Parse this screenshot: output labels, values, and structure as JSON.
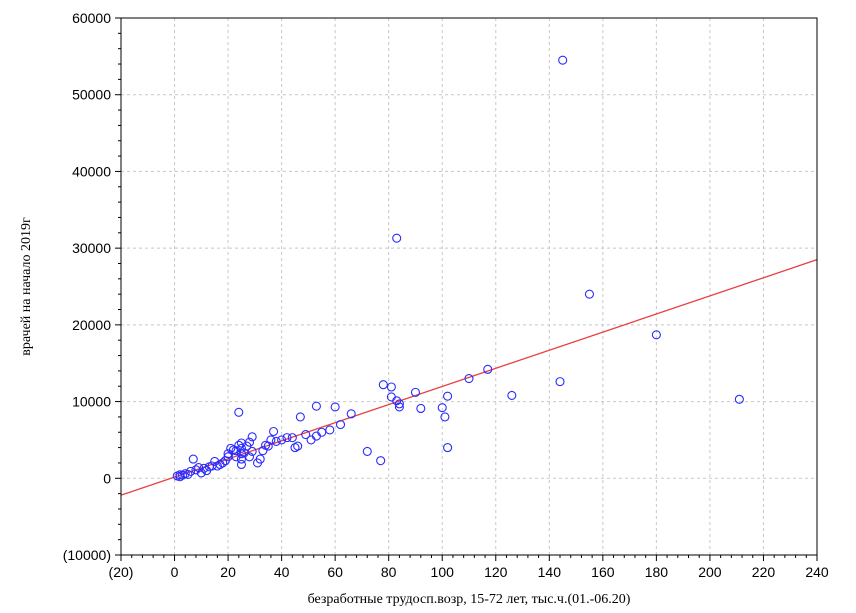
{
  "chart_data": {
    "type": "scatter",
    "xlabel": "безработные трудосп.возр, 15-72 лет, тыс.ч.(01.-06.20)",
    "ylabel": "врачей на начало 2019г",
    "xlim": [
      -20,
      240
    ],
    "ylim": [
      -10000,
      60000
    ],
    "x_ticks": [
      {
        "v": -20,
        "label": "(20)"
      },
      {
        "v": 0,
        "label": "0"
      },
      {
        "v": 20,
        "label": "20"
      },
      {
        "v": 40,
        "label": "40"
      },
      {
        "v": 60,
        "label": "60"
      },
      {
        "v": 80,
        "label": "80"
      },
      {
        "v": 100,
        "label": "100"
      },
      {
        "v": 120,
        "label": "120"
      },
      {
        "v": 140,
        "label": "140"
      },
      {
        "v": 160,
        "label": "160"
      },
      {
        "v": 180,
        "label": "180"
      },
      {
        "v": 200,
        "label": "200"
      },
      {
        "v": 220,
        "label": "220"
      },
      {
        "v": 240,
        "label": "240"
      }
    ],
    "y_ticks": [
      {
        "v": -10000,
        "label": "(10000)"
      },
      {
        "v": 0,
        "label": "0"
      },
      {
        "v": 10000,
        "label": "10000"
      },
      {
        "v": 20000,
        "label": "20000"
      },
      {
        "v": 30000,
        "label": "30000"
      },
      {
        "v": 40000,
        "label": "40000"
      },
      {
        "v": 50000,
        "label": "50000"
      },
      {
        "v": 60000,
        "label": "60000"
      }
    ],
    "grid": true,
    "trendline": {
      "x": [
        -20,
        240
      ],
      "y": [
        -2200,
        28500
      ]
    },
    "points": [
      [
        145,
        54500
      ],
      [
        83,
        31300
      ],
      [
        155,
        24000
      ],
      [
        180,
        18700
      ],
      [
        211,
        10300
      ],
      [
        144,
        12600
      ],
      [
        126,
        10800
      ],
      [
        117,
        14200
      ],
      [
        110,
        13000
      ],
      [
        90,
        11200
      ],
      [
        78,
        12200
      ],
      [
        81,
        11900
      ],
      [
        81,
        10600
      ],
      [
        83,
        10100
      ],
      [
        84,
        9300
      ],
      [
        84,
        9700
      ],
      [
        92,
        9100
      ],
      [
        100,
        9200
      ],
      [
        102,
        10700
      ],
      [
        101,
        8000
      ],
      [
        102,
        4000
      ],
      [
        77,
        2300
      ],
      [
        72,
        3500
      ],
      [
        66,
        8400
      ],
      [
        60,
        9300
      ],
      [
        53,
        9400
      ],
      [
        62,
        7000
      ],
      [
        58,
        6300
      ],
      [
        55,
        6000
      ],
      [
        53,
        5500
      ],
      [
        51,
        5000
      ],
      [
        47,
        8000
      ],
      [
        49,
        5700
      ],
      [
        45,
        4000
      ],
      [
        46,
        4200
      ],
      [
        44,
        5300
      ],
      [
        42,
        5300
      ],
      [
        40,
        5000
      ],
      [
        38,
        4800
      ],
      [
        37,
        6100
      ],
      [
        36,
        5000
      ],
      [
        35,
        4200
      ],
      [
        34,
        4300
      ],
      [
        33,
        3600
      ],
      [
        32,
        2500
      ],
      [
        31,
        2000
      ],
      [
        29,
        5400
      ],
      [
        29,
        3500
      ],
      [
        28,
        4700
      ],
      [
        28,
        2800
      ],
      [
        27,
        4200
      ],
      [
        26,
        3300
      ],
      [
        25,
        4600
      ],
      [
        25,
        3900
      ],
      [
        25,
        3200
      ],
      [
        25,
        2500
      ],
      [
        25,
        1800
      ],
      [
        24,
        8600
      ],
      [
        24,
        4300
      ],
      [
        23,
        3600
      ],
      [
        23,
        2800
      ],
      [
        22,
        3700
      ],
      [
        21,
        3900
      ],
      [
        20,
        3200
      ],
      [
        20,
        2800
      ],
      [
        19,
        2300
      ],
      [
        18,
        2000
      ],
      [
        17,
        1800
      ],
      [
        16,
        1600
      ],
      [
        15,
        2200
      ],
      [
        14,
        1600
      ],
      [
        13,
        1500
      ],
      [
        12,
        1000
      ],
      [
        11,
        1300
      ],
      [
        10,
        700
      ],
      [
        9,
        1400
      ],
      [
        8,
        1100
      ],
      [
        7,
        2500
      ],
      [
        6,
        900
      ],
      [
        5,
        500
      ],
      [
        4,
        600
      ],
      [
        3,
        400
      ],
      [
        2,
        200
      ],
      [
        1,
        300
      ],
      [
        2,
        450
      ]
    ]
  }
}
